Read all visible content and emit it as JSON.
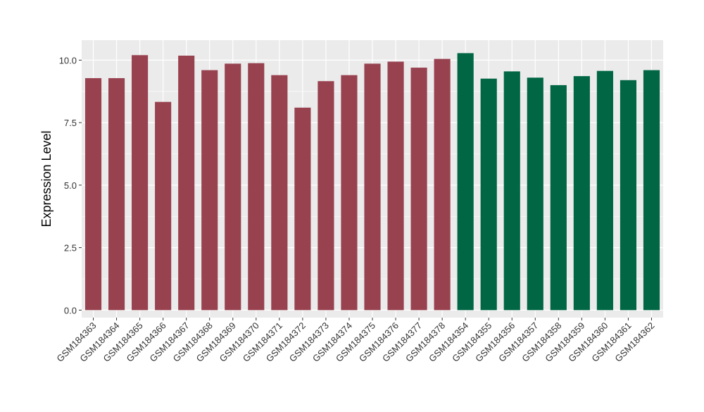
{
  "chart_data": {
    "type": "bar",
    "title": "",
    "xlabel": "",
    "ylabel": "Expression Level",
    "ylim": [
      -0.3,
      10.8
    ],
    "yticks": [
      0.0,
      2.5,
      5.0,
      7.5,
      10.0
    ],
    "ytick_labels": [
      "0.0",
      "2.5",
      "5.0",
      "7.5",
      "10.0"
    ],
    "grid": true,
    "legend": "none",
    "colors": {
      "group1": "#984250",
      "group2": "#006644",
      "panel": "#ebebeb",
      "grid": "#ffffff"
    },
    "categories": [
      "GSM184363",
      "GSM184364",
      "GSM184365",
      "GSM184366",
      "GSM184367",
      "GSM184368",
      "GSM184369",
      "GSM184370",
      "GSM184371",
      "GSM184372",
      "GSM184373",
      "GSM184374",
      "GSM184375",
      "GSM184376",
      "GSM184377",
      "GSM184378",
      "GSM184354",
      "GSM184355",
      "GSM184356",
      "GSM184357",
      "GSM184358",
      "GSM184359",
      "GSM184360",
      "GSM184361",
      "GSM184362"
    ],
    "values": [
      9.28,
      9.28,
      10.2,
      8.33,
      10.18,
      9.6,
      9.86,
      9.88,
      9.4,
      8.1,
      9.16,
      9.4,
      9.86,
      9.94,
      9.7,
      10.05,
      10.28,
      9.26,
      9.55,
      9.3,
      9.0,
      9.36,
      9.57,
      9.2,
      9.6
    ],
    "groups": [
      1,
      1,
      1,
      1,
      1,
      1,
      1,
      1,
      1,
      1,
      1,
      1,
      1,
      1,
      1,
      1,
      2,
      2,
      2,
      2,
      2,
      2,
      2,
      2,
      2
    ]
  }
}
